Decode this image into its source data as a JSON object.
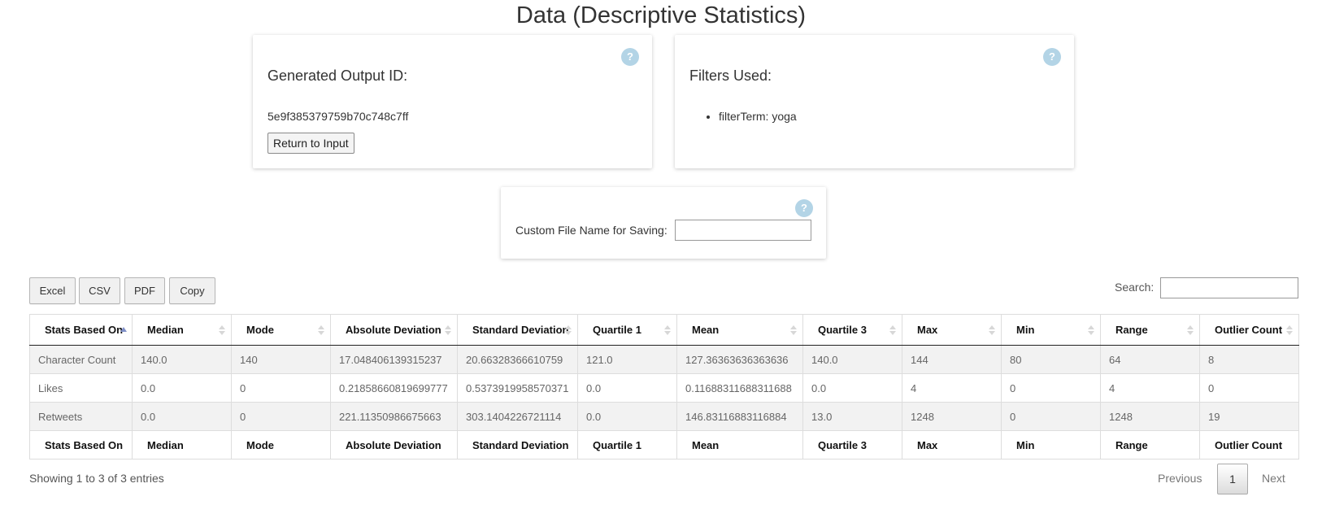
{
  "page": {
    "title": "Data (Descriptive Statistics)"
  },
  "output_card": {
    "heading": "Generated Output ID:",
    "output_id": "5e9f385379759b70c748c7ff",
    "return_button": "Return to Input",
    "help": "?"
  },
  "filters_card": {
    "heading": "Filters Used:",
    "items": [
      "filterTerm: yoga"
    ],
    "help": "?"
  },
  "filename_card": {
    "label": "Custom File Name for Saving:",
    "value": "",
    "help": "?"
  },
  "export_buttons": {
    "excel": "Excel",
    "csv": "CSV",
    "pdf": "PDF",
    "copy": "Copy"
  },
  "search": {
    "label": "Search:",
    "value": ""
  },
  "table": {
    "columns": [
      "Stats Based On",
      "Median",
      "Mode",
      "Absolute Deviation",
      "Standard Deviation",
      "Quartile 1",
      "Mean",
      "Quartile 3",
      "Max",
      "Min",
      "Range",
      "Outlier Count"
    ],
    "sorted_column": "Stats Based On",
    "sort_direction": "ascending",
    "rows": [
      [
        "Character Count",
        "140.0",
        "140",
        "17.048406139315237",
        "20.66328366610759",
        "121.0",
        "127.36363636363636",
        "140.0",
        "144",
        "80",
        "64",
        "8"
      ],
      [
        "Likes",
        "0.0",
        "0",
        "0.21858660819699777",
        "0.5373919958570371",
        "0.0",
        "0.11688311688311688",
        "0.0",
        "4",
        "0",
        "4",
        "0"
      ],
      [
        "Retweets",
        "0.0",
        "0",
        "221.11350986675663",
        "303.1404226721114",
        "0.0",
        "146.83116883116884",
        "13.0",
        "1248",
        "0",
        "1248",
        "19"
      ]
    ]
  },
  "footer": {
    "info": "Showing 1 to 3 of 3 entries",
    "previous": "Previous",
    "current_page": "1",
    "next": "Next"
  }
}
